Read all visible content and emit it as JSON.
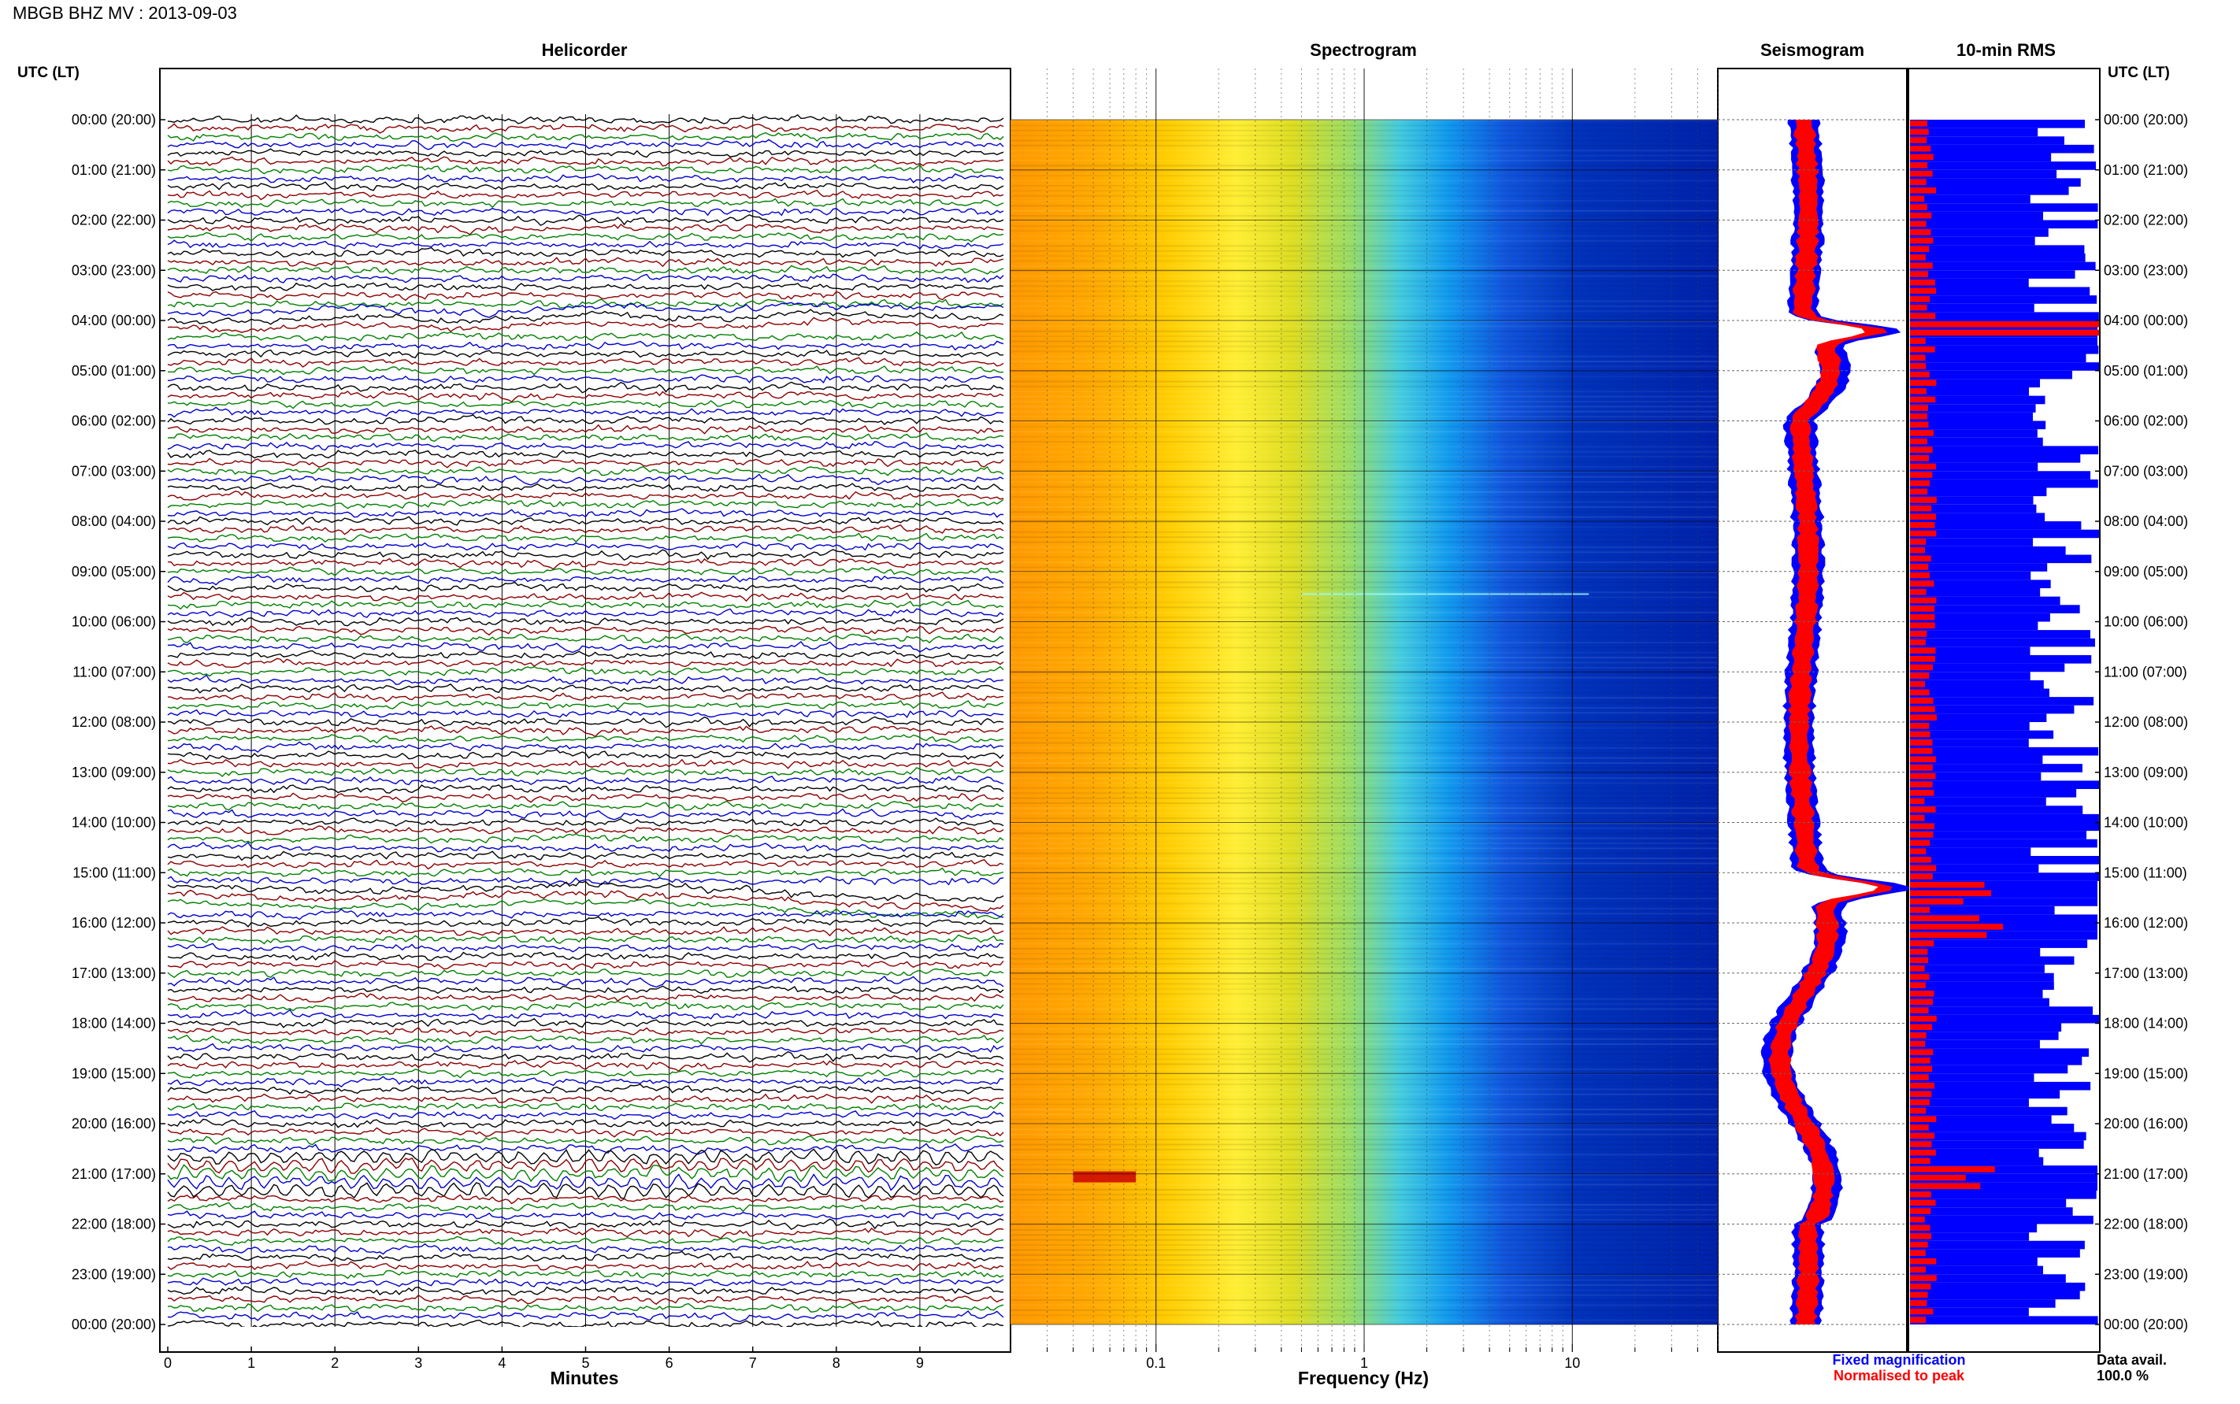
{
  "title": "MBGB BHZ MV : 2013-09-03",
  "time_axis_label": "UTC (LT)",
  "time_labels": [
    "00:00 (20:00)",
    "01:00 (21:00)",
    "02:00 (22:00)",
    "03:00 (23:00)",
    "04:00 (00:00)",
    "05:00 (01:00)",
    "06:00 (02:00)",
    "07:00 (03:00)",
    "08:00 (04:00)",
    "09:00 (05:00)",
    "10:00 (06:00)",
    "11:00 (07:00)",
    "12:00 (08:00)",
    "13:00 (09:00)",
    "14:00 (10:00)",
    "15:00 (11:00)",
    "16:00 (12:00)",
    "17:00 (13:00)",
    "18:00 (14:00)",
    "19:00 (15:00)",
    "20:00 (16:00)",
    "21:00 (17:00)",
    "22:00 (18:00)",
    "23:00 (19:00)",
    "00:00 (20:00)"
  ],
  "colors": {
    "trace_colors": [
      "#000000",
      "#8b0000",
      "#008000",
      "#0000cd"
    ],
    "fixed": "#0000ff",
    "normalised": "#ff0000",
    "rms_bar": "#0000ff",
    "rms_norm": "#ff0000"
  },
  "chart_data": [
    {
      "type": "line",
      "title": "Helicorder",
      "xlabel": "Minutes",
      "xticks": [
        "0",
        "1",
        "2",
        "3",
        "4",
        "5",
        "6",
        "7",
        "8",
        "9"
      ],
      "xlim": [
        0,
        10
      ],
      "trace_rows_per_hour": 6,
      "events_hours": [
        4.0,
        9.4,
        15.5,
        21.0
      ]
    },
    {
      "type": "heatmap",
      "title": "Spectrogram",
      "xlabel": "Frequency (Hz)",
      "xticks": [
        "0.1",
        "1",
        "10"
      ],
      "xscale": "log",
      "xlim": [
        0.02,
        50
      ]
    },
    {
      "type": "line",
      "title": "Seismogram",
      "legend": [
        "Fixed magnification",
        "Normalised to peak"
      ],
      "events_hours": [
        4.2,
        15.3
      ]
    },
    {
      "type": "bar",
      "title": "10-min RMS",
      "footer_label": "Data avail.",
      "footer_value": "100.0 %",
      "peaks_hours": [
        4.1,
        15.3,
        16.0,
        21.0
      ]
    }
  ]
}
